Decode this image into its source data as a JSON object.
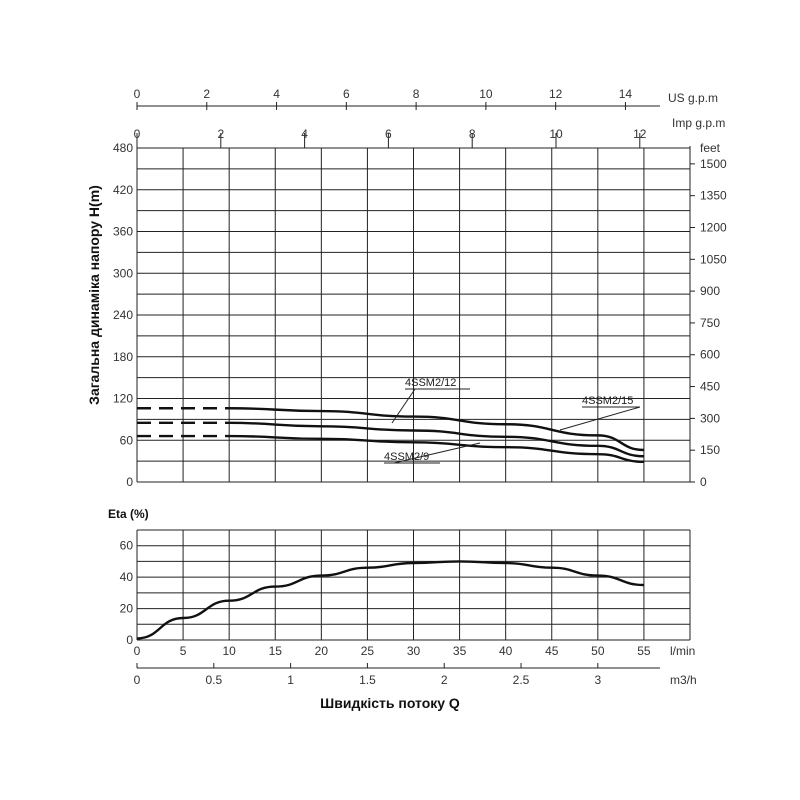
{
  "chart_data": [
    {
      "type": "line",
      "ylabel": "Загальна динаміка напору H(m)",
      "ylim": [
        0,
        480
      ],
      "y_ticks": [
        "0",
        "60",
        "120",
        "180",
        "240",
        "300",
        "360",
        "420",
        "480"
      ],
      "right_unit": "feet",
      "right_ticks": [
        "0",
        "150",
        "300",
        "450",
        "600",
        "750",
        "900",
        "1050",
        "1200",
        "1350",
        "1500"
      ],
      "top_axes": [
        {
          "unit": "US g.p.m",
          "ticks": [
            "0",
            "2",
            "4",
            "6",
            "8",
            "10",
            "12",
            "14"
          ]
        },
        {
          "unit": "Imp g.p.m",
          "ticks": [
            "0",
            "2",
            "4",
            "6",
            "8",
            "10",
            "12"
          ]
        }
      ],
      "x_unit": "l/min",
      "xlim": [
        0,
        60
      ],
      "x": [
        10,
        20,
        30,
        40,
        50,
        55
      ],
      "dashed_x_range": [
        0,
        10
      ],
      "grid": true,
      "series": [
        {
          "name": "4SSM2/15",
          "values": [
            106,
            102,
            94,
            83,
            67,
            46
          ]
        },
        {
          "name": "4SSM2/12",
          "values": [
            85,
            80,
            74,
            65,
            52,
            37
          ]
        },
        {
          "name": "4SSM2/9",
          "values": [
            66,
            62,
            57,
            50,
            40,
            29
          ]
        }
      ]
    },
    {
      "type": "line",
      "ylabel": "Eta (%)",
      "ylim": [
        0,
        70
      ],
      "y_ticks": [
        "0",
        "20",
        "40",
        "60"
      ],
      "x_ticks_lmin": [
        "0",
        "5",
        "10",
        "15",
        "20",
        "25",
        "30",
        "35",
        "40",
        "45",
        "50",
        "55"
      ],
      "x_unit_lmin": "l/min",
      "x_ticks_m3h": [
        "0",
        "0.5",
        "1",
        "1.5",
        "2",
        "2.5",
        "3"
      ],
      "x_unit_m3h": "m3/h",
      "xlabel": "Швидкість потоку Q",
      "xlim": [
        0,
        60
      ],
      "grid": true,
      "series": [
        {
          "x": [
            0,
            5,
            10,
            15,
            20,
            25,
            30,
            35,
            40,
            45,
            50,
            55
          ],
          "values": [
            1,
            14,
            25,
            34,
            41,
            46,
            49,
            50,
            49,
            46,
            41,
            35
          ]
        }
      ]
    }
  ]
}
